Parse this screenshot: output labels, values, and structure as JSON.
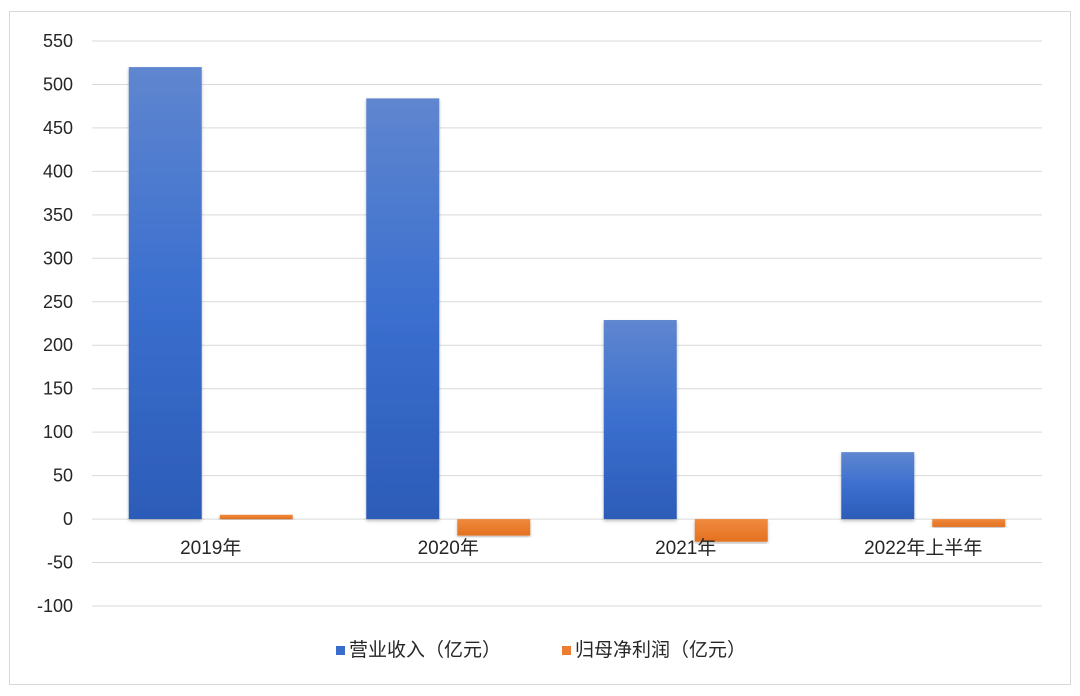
{
  "chart_data": {
    "type": "bar",
    "categories": [
      "2019年",
      "2020年",
      "2021年",
      "2022年上半年"
    ],
    "series": [
      {
        "name": "营业收入（亿元）",
        "values": [
          520,
          484,
          229,
          77
        ],
        "color": "#3a6ccb"
      },
      {
        "name": "归母净利润（亿元）",
        "values": [
          5,
          -19,
          -26,
          -9
        ],
        "color": "#ed7d31"
      }
    ],
    "ylim": [
      -100,
      550
    ],
    "yticks": [
      550,
      500,
      450,
      400,
      350,
      300,
      250,
      200,
      150,
      100,
      50,
      0,
      -50,
      -100
    ],
    "ytick_labels": [
      "550",
      "500",
      "450",
      "400",
      "350",
      "300",
      "250",
      "200",
      "150",
      "100",
      "50",
      "0",
      "-50",
      "-100"
    ],
    "grid": true,
    "legend_position": "bottom"
  }
}
